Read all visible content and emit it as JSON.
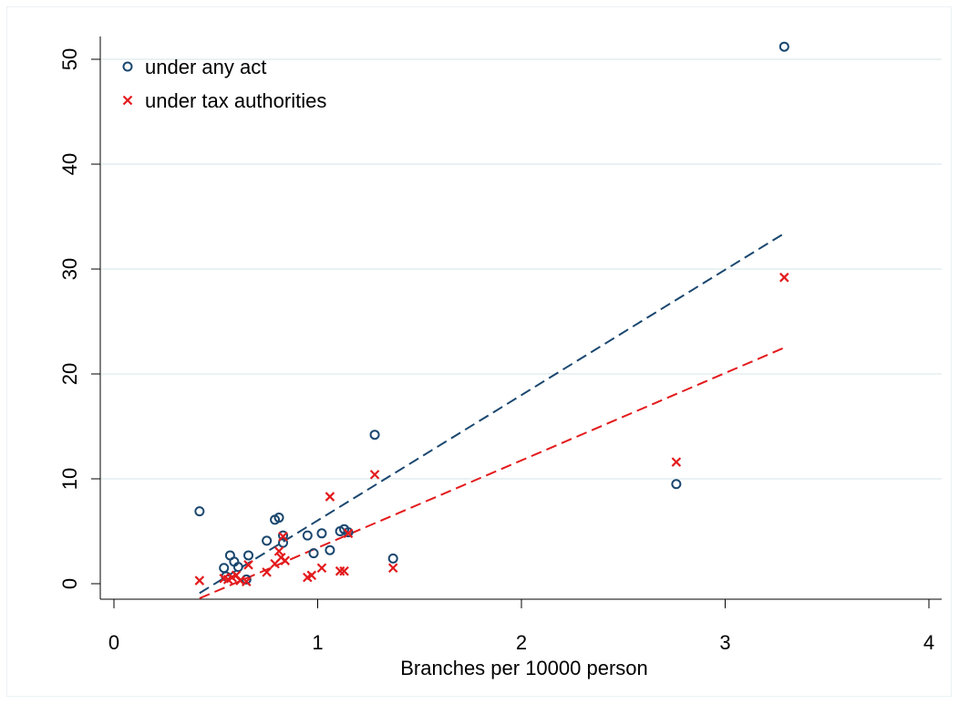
{
  "chart_data": {
    "type": "scatter",
    "title": "",
    "xlabel": "Branches per 10000 person",
    "ylabel": "",
    "xlim": [
      0,
      4
    ],
    "ylim": [
      0,
      50
    ],
    "x_ticks": [
      "0",
      "1",
      "2",
      "3",
      "4"
    ],
    "y_ticks": [
      "0",
      "10",
      "20",
      "30",
      "40",
      "50"
    ],
    "grid": "horizontal",
    "legend_position": "top-left",
    "series": [
      {
        "name": "under any act",
        "marker": "circle",
        "color": "#1a476f",
        "points": [
          [
            0.42,
            6.9
          ],
          [
            0.54,
            1.5
          ],
          [
            0.57,
            2.7
          ],
          [
            0.59,
            2.1
          ],
          [
            0.61,
            1.6
          ],
          [
            0.55,
            0.7
          ],
          [
            0.65,
            0.4
          ],
          [
            0.66,
            2.7
          ],
          [
            0.75,
            4.1
          ],
          [
            0.79,
            6.1
          ],
          [
            0.81,
            6.3
          ],
          [
            0.83,
            4.6
          ],
          [
            0.83,
            3.9
          ],
          [
            0.95,
            4.6
          ],
          [
            0.98,
            2.9
          ],
          [
            1.02,
            4.8
          ],
          [
            1.06,
            3.2
          ],
          [
            1.11,
            5.0
          ],
          [
            1.13,
            5.2
          ],
          [
            1.15,
            4.9
          ],
          [
            1.28,
            14.2
          ],
          [
            1.37,
            2.4
          ],
          [
            2.76,
            9.5
          ],
          [
            3.29,
            51.2
          ]
        ],
        "fit": {
          "x": [
            0.42,
            3.29
          ],
          "y": [
            -0.9,
            33.4
          ]
        }
      },
      {
        "name": "under tax authorities",
        "marker": "x",
        "color": "#e31a1c",
        "points": [
          [
            0.42,
            0.3
          ],
          [
            0.54,
            0.5
          ],
          [
            0.56,
            0.4
          ],
          [
            0.58,
            0.6
          ],
          [
            0.6,
            0.8
          ],
          [
            0.62,
            0.3
          ],
          [
            0.65,
            0.2
          ],
          [
            0.66,
            1.8
          ],
          [
            0.75,
            1.1
          ],
          [
            0.79,
            1.9
          ],
          [
            0.81,
            3.1
          ],
          [
            0.82,
            2.5
          ],
          [
            0.83,
            4.5
          ],
          [
            0.84,
            2.2
          ],
          [
            0.95,
            0.6
          ],
          [
            0.97,
            0.8
          ],
          [
            1.02,
            1.5
          ],
          [
            1.06,
            8.3
          ],
          [
            1.11,
            1.2
          ],
          [
            1.13,
            1.2
          ],
          [
            1.15,
            4.8
          ],
          [
            1.28,
            10.4
          ],
          [
            1.37,
            1.5
          ],
          [
            2.76,
            11.6
          ],
          [
            3.29,
            29.2
          ]
        ],
        "fit": {
          "x": [
            0.42,
            3.29
          ],
          "y": [
            -1.4,
            22.5
          ]
        }
      }
    ]
  }
}
